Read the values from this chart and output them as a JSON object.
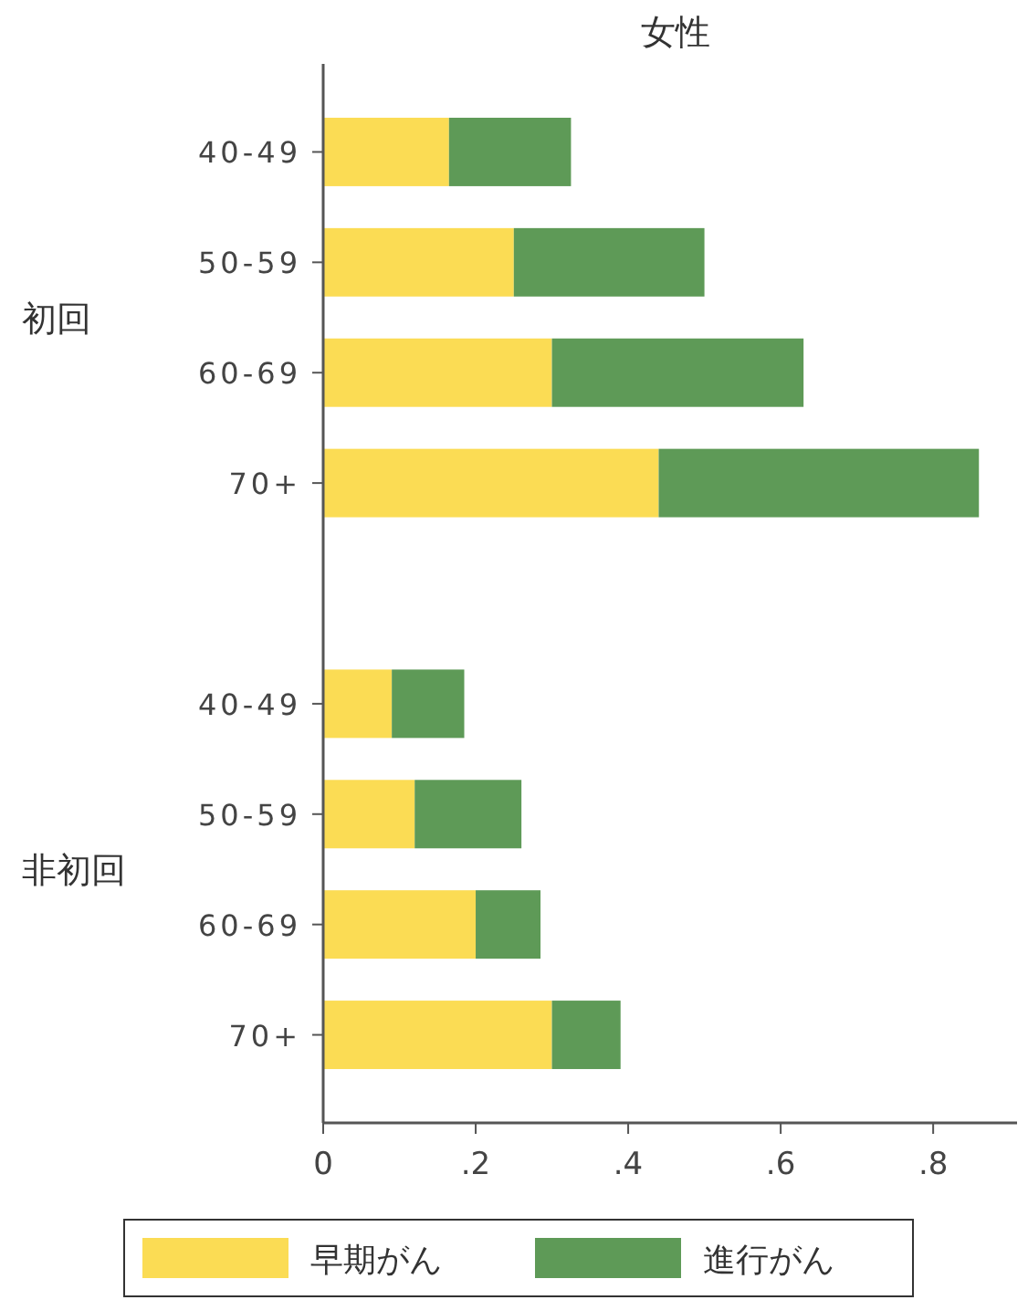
{
  "chart_data": {
    "type": "bar",
    "orientation": "horizontal",
    "stacked": true,
    "title": "女性",
    "categories": [
      "40-49",
      "50-59",
      "60-69",
      "70+",
      null,
      "40-49",
      "50-59",
      "60-69",
      "70+"
    ],
    "series": [
      {
        "name": "早期がん",
        "color": "#fbdc54",
        "values": [
          0.165,
          0.25,
          0.3,
          0.44,
          null,
          0.09,
          0.12,
          0.2,
          0.3
        ]
      },
      {
        "name": "進行がん",
        "color": "#5e9a57",
        "values": [
          0.16,
          0.25,
          0.33,
          0.42,
          null,
          0.095,
          0.14,
          0.085,
          0.09
        ]
      }
    ],
    "annotations": [
      "初回",
      "非初回"
    ],
    "xlim": [
      0,
      0.91
    ],
    "xticks": [
      0,
      {
        "value": 0.2,
        "label": ".2"
      },
      {
        "value": 0.4,
        "label": ".4"
      },
      {
        "value": 0.6,
        "label": ".6"
      },
      {
        "value": 0.8,
        "label": ".8"
      }
    ],
    "grid": false,
    "legend": "bottom"
  }
}
